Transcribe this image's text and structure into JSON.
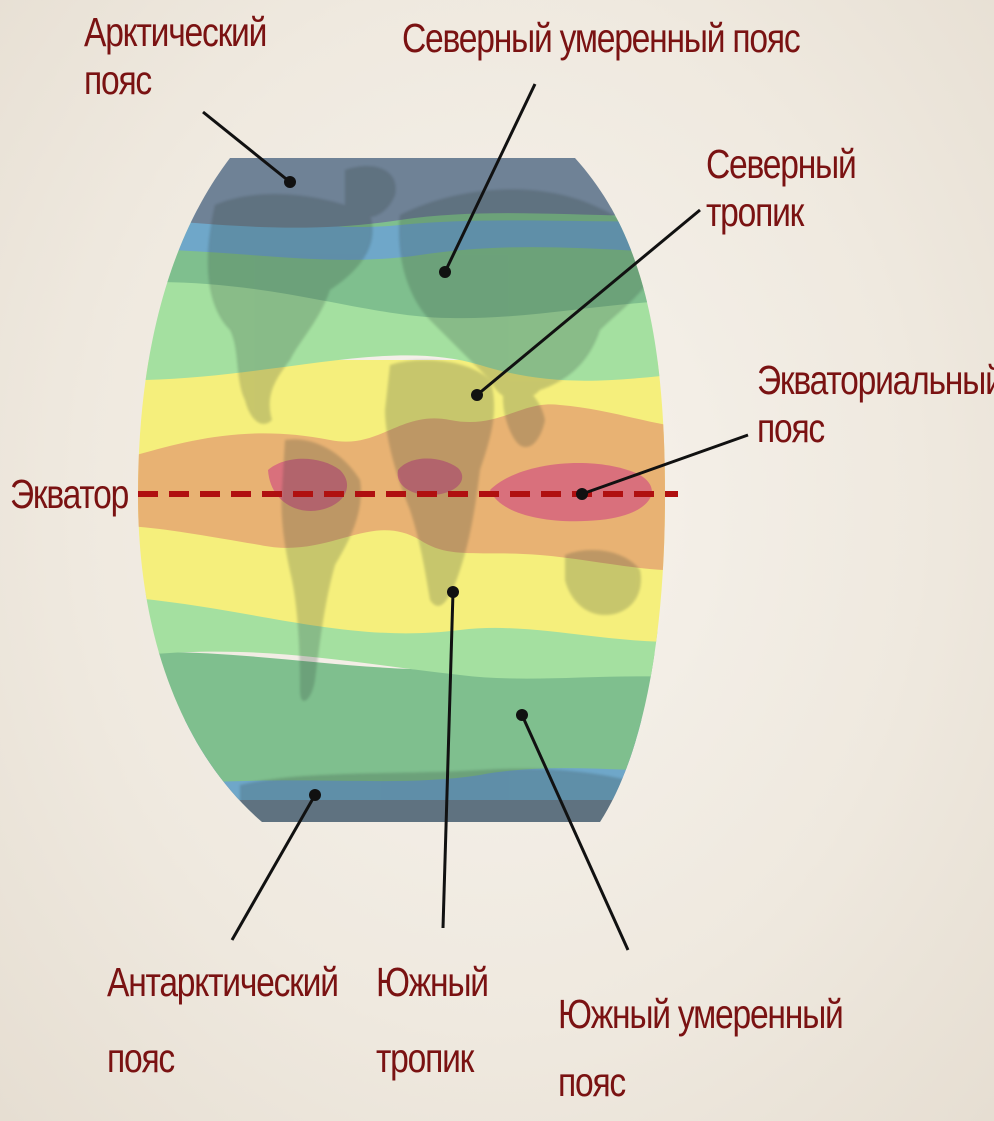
{
  "map": {
    "belt_colors": {
      "arctic": "#6f8296",
      "subarctic": "#6fa7c9",
      "temperate": "#7fbf8e",
      "subtropical": "#a4e0a0",
      "tropical": "#f5ef7c",
      "subequatorial": "#e8b273",
      "equatorial": "#d9707c",
      "equator_line": "#b01010",
      "label_color": "#7a1212"
    },
    "labels": {
      "arctic": {
        "line1": "Арктический",
        "line2": "пояс"
      },
      "north_temperate": {
        "line1": "Северный умеренный пояс"
      },
      "north_tropic": {
        "line1": "Северный",
        "line2": "тропик"
      },
      "equatorial": {
        "line1": "Экваториальный",
        "line2": "пояс"
      },
      "equator": {
        "line1": "Экватор"
      },
      "antarctic": {
        "line1": "Антарктический",
        "line2": "пояс"
      },
      "south_tropic": {
        "line1": "Южный",
        "line2": "тропик"
      },
      "south_temperate": {
        "line1": "Южный умеренный",
        "line2": "пояс"
      }
    }
  }
}
